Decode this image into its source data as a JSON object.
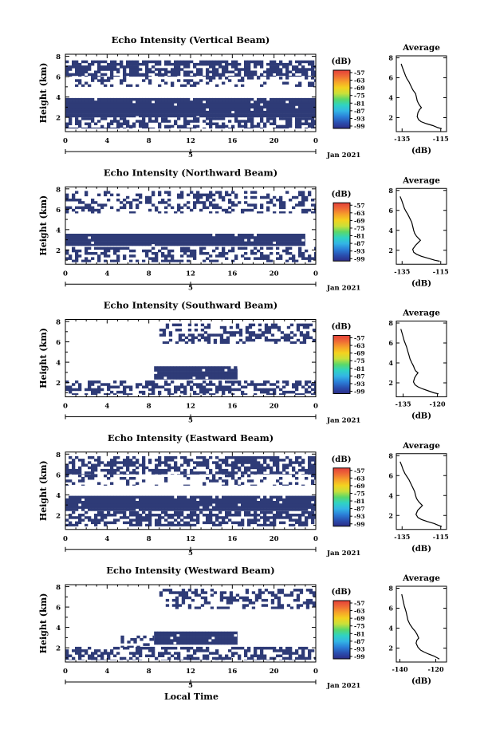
{
  "figure": {
    "xlabel": "Local Time",
    "date_label": "Jan 2021",
    "colors": {
      "echo": "#2e3b77",
      "background": "#ffffff",
      "colorbar": [
        "#2c2c86",
        "#2a4fb0",
        "#2b7fd8",
        "#33b5e5",
        "#2fd3c3",
        "#5ad86a",
        "#c9e03a",
        "#f4d21f",
        "#f6a12a",
        "#ef6a36",
        "#e3403a"
      ]
    }
  },
  "chart_data": [
    {
      "type": "heatmap",
      "title": "Echo Intensity (Vertical Beam)",
      "xlabel": "",
      "ylabel": "Height (km)",
      "x_ticks": [
        "0",
        "4",
        "8",
        "12",
        "16",
        "20",
        "0"
      ],
      "xlim": [
        0,
        24
      ],
      "y_ticks": [
        "2",
        "4",
        "6",
        "8"
      ],
      "ylim": [
        0.6,
        8.2
      ],
      "secondary_axis": {
        "ticks": [
          "5"
        ],
        "marker_at_hours": [
          0,
          12,
          24
        ]
      },
      "colorbar": {
        "label": "(dB)",
        "ticks": [
          "-57",
          "-63",
          "-69",
          "-75",
          "-81",
          "-87",
          "-93",
          "-99"
        ],
        "range": [
          -99,
          -57
        ]
      },
      "echo_regions": [
        {
          "x0": 0.0,
          "x1": 24.0,
          "y0": 6.0,
          "y1": 7.6,
          "density": 0.7
        },
        {
          "x0": 0.0,
          "x1": 24.0,
          "y0": 5.0,
          "y1": 6.0,
          "density": 0.25
        },
        {
          "x0": 0.0,
          "x1": 24.0,
          "y0": 2.0,
          "y1": 3.9,
          "density": 0.97
        },
        {
          "x0": 0.0,
          "x1": 24.0,
          "y0": 0.9,
          "y1": 2.0,
          "density": 0.55
        }
      ],
      "average_profile": {
        "title": "Average",
        "xlabel": "(dB)",
        "x_ticks": [
          "-135",
          "-115"
        ],
        "xlim": [
          -138,
          -112
        ],
        "y_ticks": [
          "2",
          "4",
          "6",
          "8"
        ],
        "ylim": [
          0.6,
          8.2
        ],
        "x": [
          -135.5,
          -134.8,
          -134,
          -133.2,
          -132.5,
          -131.5,
          -130.5,
          -129.5,
          -128,
          -127.5,
          -127.2,
          -126.5,
          -125.8,
          -125,
          -126,
          -126.8,
          -127.2,
          -126.5,
          -125.2,
          -122.5,
          -119,
          -116.5,
          -114.5
        ],
        "y": [
          7.4,
          7.0,
          6.6,
          6.2,
          5.9,
          5.6,
          5.2,
          4.8,
          4.4,
          4.0,
          3.7,
          3.4,
          3.2,
          3.0,
          2.8,
          2.5,
          2.1,
          1.8,
          1.6,
          1.4,
          1.2,
          1.0,
          0.9
        ]
      }
    },
    {
      "type": "heatmap",
      "title": "Echo Intensity (Northward Beam)",
      "xlabel": "",
      "ylabel": "Height (km)",
      "x_ticks": [
        "0",
        "4",
        "8",
        "12",
        "16",
        "20",
        "0"
      ],
      "xlim": [
        0,
        24
      ],
      "y_ticks": [
        "2",
        "4",
        "6",
        "8"
      ],
      "ylim": [
        0.6,
        8.2
      ],
      "secondary_axis": {
        "ticks": [
          "5"
        ],
        "marker_at_hours": [
          0,
          12,
          24
        ]
      },
      "colorbar": {
        "label": "(dB)",
        "ticks": [
          "-57",
          "-63",
          "-69",
          "-75",
          "-81",
          "-87",
          "-93",
          "-99"
        ],
        "range": [
          -99,
          -57
        ]
      },
      "echo_regions": [
        {
          "x0": 0.0,
          "x1": 24.0,
          "y0": 5.6,
          "y1": 7.8,
          "density": 0.35
        },
        {
          "x0": 0.0,
          "x1": 23.0,
          "y0": 2.4,
          "y1": 3.6,
          "density": 0.97
        },
        {
          "x0": 0.0,
          "x1": 24.0,
          "y0": 0.8,
          "y1": 2.3,
          "density": 0.45
        }
      ],
      "average_profile": {
        "title": "Average",
        "xlabel": "(dB)",
        "x_ticks": [
          "-135",
          "-115"
        ],
        "xlim": [
          -138,
          -112
        ],
        "y_ticks": [
          "2",
          "4",
          "6",
          "8"
        ],
        "ylim": [
          0.6,
          8.2
        ],
        "x": [
          -136,
          -135.2,
          -134.5,
          -133.8,
          -133,
          -132,
          -131,
          -130,
          -129.5,
          -129,
          -128.5,
          -127.5,
          -126.5,
          -125.5,
          -126.5,
          -128,
          -129.5,
          -129,
          -127.5,
          -125,
          -121.5,
          -118,
          -115.5
        ],
        "y": [
          7.4,
          7.0,
          6.6,
          6.2,
          5.9,
          5.6,
          5.2,
          4.8,
          4.4,
          4.0,
          3.7,
          3.4,
          3.2,
          3.0,
          2.8,
          2.5,
          2.1,
          1.8,
          1.6,
          1.4,
          1.2,
          1.0,
          0.9
        ]
      }
    },
    {
      "type": "heatmap",
      "title": "Echo Intensity (Southward Beam)",
      "xlabel": "",
      "ylabel": "Height (km)",
      "x_ticks": [
        "0",
        "4",
        "8",
        "12",
        "16",
        "20",
        "0"
      ],
      "xlim": [
        0,
        24
      ],
      "y_ticks": [
        "2",
        "4",
        "6",
        "8"
      ],
      "ylim": [
        0.6,
        8.2
      ],
      "secondary_axis": {
        "ticks": [
          "5"
        ],
        "marker_at_hours": [
          0,
          12,
          24
        ]
      },
      "colorbar": {
        "label": "(dB)",
        "ticks": [
          "-57",
          "-63",
          "-69",
          "-75",
          "-81",
          "-87",
          "-93",
          "-99"
        ],
        "range": [
          -99,
          -57
        ]
      },
      "echo_regions": [
        {
          "x0": 9.0,
          "x1": 24.0,
          "y0": 5.8,
          "y1": 7.8,
          "density": 0.45
        },
        {
          "x0": 8.5,
          "x1": 16.5,
          "y0": 2.3,
          "y1": 3.6,
          "density": 0.95
        },
        {
          "x0": 0.0,
          "x1": 24.0,
          "y0": 0.8,
          "y1": 2.2,
          "density": 0.5
        }
      ],
      "average_profile": {
        "title": "Average",
        "xlabel": "(dB)",
        "x_ticks": [
          "-135",
          "-120"
        ],
        "xlim": [
          -138,
          -116
        ],
        "y_ticks": [
          "2",
          "4",
          "6",
          "8"
        ],
        "ylim": [
          0.6,
          8.2
        ],
        "x": [
          -136,
          -135.5,
          -135,
          -134.5,
          -134,
          -133.5,
          -133,
          -132.5,
          -132,
          -131.2,
          -130.5,
          -130,
          -129.5,
          -128.5,
          -129.2,
          -130,
          -130.5,
          -129.8,
          -128.5,
          -126.5,
          -124,
          -121.5,
          -119.5
        ],
        "y": [
          7.4,
          7.0,
          6.6,
          6.2,
          5.9,
          5.6,
          5.2,
          4.8,
          4.4,
          4.0,
          3.7,
          3.4,
          3.2,
          3.0,
          2.8,
          2.5,
          2.1,
          1.8,
          1.6,
          1.4,
          1.2,
          1.0,
          0.9
        ]
      }
    },
    {
      "type": "heatmap",
      "title": "Echo Intensity (Eastward Beam)",
      "xlabel": "",
      "ylabel": "Height (km)",
      "x_ticks": [
        "0",
        "4",
        "8",
        "12",
        "16",
        "20",
        "0"
      ],
      "xlim": [
        0,
        24
      ],
      "y_ticks": [
        "2",
        "4",
        "6",
        "8"
      ],
      "ylim": [
        0.6,
        8.2
      ],
      "secondary_axis": {
        "ticks": [
          "5"
        ],
        "marker_at_hours": [
          0,
          12,
          24
        ]
      },
      "colorbar": {
        "label": "(dB)",
        "ticks": [
          "-57",
          "-63",
          "-69",
          "-75",
          "-81",
          "-87",
          "-93",
          "-99"
        ],
        "range": [
          -99,
          -57
        ]
      },
      "echo_regions": [
        {
          "x0": 0.0,
          "x1": 24.0,
          "y0": 6.0,
          "y1": 7.8,
          "density": 0.6
        },
        {
          "x0": 0.0,
          "x1": 24.0,
          "y0": 4.9,
          "y1": 6.0,
          "density": 0.25
        },
        {
          "x0": 0.0,
          "x1": 24.0,
          "y0": 2.4,
          "y1": 3.9,
          "density": 0.95
        },
        {
          "x0": 0.0,
          "x1": 24.0,
          "y0": 0.9,
          "y1": 2.4,
          "density": 0.6
        }
      ],
      "average_profile": {
        "title": "Average",
        "xlabel": "(dB)",
        "x_ticks": [
          "-135",
          "-115"
        ],
        "xlim": [
          -138,
          -112
        ],
        "y_ticks": [
          "2",
          "4",
          "6",
          "8"
        ],
        "ylim": [
          0.6,
          8.2
        ],
        "x": [
          -136,
          -135.2,
          -134.5,
          -133.5,
          -132.5,
          -131.5,
          -130.5,
          -129.5,
          -128.5,
          -128,
          -127.5,
          -126.5,
          -125.5,
          -124.5,
          -125.5,
          -127,
          -127.8,
          -126.8,
          -125,
          -122,
          -118.5,
          -116,
          -114.5
        ],
        "y": [
          7.4,
          7.0,
          6.6,
          6.2,
          5.9,
          5.6,
          5.2,
          4.8,
          4.4,
          4.0,
          3.7,
          3.4,
          3.2,
          3.0,
          2.8,
          2.5,
          2.1,
          1.8,
          1.6,
          1.4,
          1.2,
          1.0,
          0.9
        ]
      }
    },
    {
      "type": "heatmap",
      "title": "Echo Intensity (Westward Beam)",
      "xlabel": "Local Time",
      "ylabel": "Height (km)",
      "x_ticks": [
        "0",
        "4",
        "8",
        "12",
        "16",
        "20",
        "0"
      ],
      "xlim": [
        0,
        24
      ],
      "y_ticks": [
        "2",
        "4",
        "6",
        "8"
      ],
      "ylim": [
        0.6,
        8.2
      ],
      "secondary_axis": {
        "ticks": [
          "5"
        ],
        "marker_at_hours": [
          0,
          12,
          24
        ]
      },
      "colorbar": {
        "label": "(dB)",
        "ticks": [
          "-57",
          "-63",
          "-69",
          "-75",
          "-81",
          "-87",
          "-93",
          "-99"
        ],
        "range": [
          -99,
          -57
        ]
      },
      "echo_regions": [
        {
          "x0": 9.0,
          "x1": 24.0,
          "y0": 5.8,
          "y1": 7.8,
          "density": 0.4
        },
        {
          "x0": 8.5,
          "x1": 16.5,
          "y0": 2.3,
          "y1": 3.6,
          "density": 0.95
        },
        {
          "x0": 5.0,
          "x1": 8.5,
          "y0": 2.0,
          "y1": 3.2,
          "density": 0.35
        },
        {
          "x0": 0.0,
          "x1": 24.0,
          "y0": 0.8,
          "y1": 2.1,
          "density": 0.5
        }
      ],
      "average_profile": {
        "title": "Average",
        "xlabel": "(dB)",
        "x_ticks": [
          "-140",
          "-120"
        ],
        "xlim": [
          -142,
          -114
        ],
        "y_ticks": [
          "2",
          "4",
          "6",
          "8"
        ],
        "ylim": [
          0.6,
          8.2
        ],
        "x": [
          -139,
          -138.5,
          -138,
          -137.5,
          -137,
          -136.5,
          -136,
          -135.5,
          -134.5,
          -133,
          -131.5,
          -130.5,
          -130,
          -129.5,
          -130.5,
          -131,
          -130,
          -128.5,
          -126.5,
          -124,
          -121,
          -119,
          -118
        ],
        "y": [
          7.4,
          7.0,
          6.6,
          6.2,
          5.9,
          5.6,
          5.2,
          4.8,
          4.4,
          4.0,
          3.7,
          3.4,
          3.2,
          3.0,
          2.8,
          2.5,
          2.1,
          1.8,
          1.6,
          1.4,
          1.2,
          1.0,
          0.9
        ]
      }
    }
  ]
}
